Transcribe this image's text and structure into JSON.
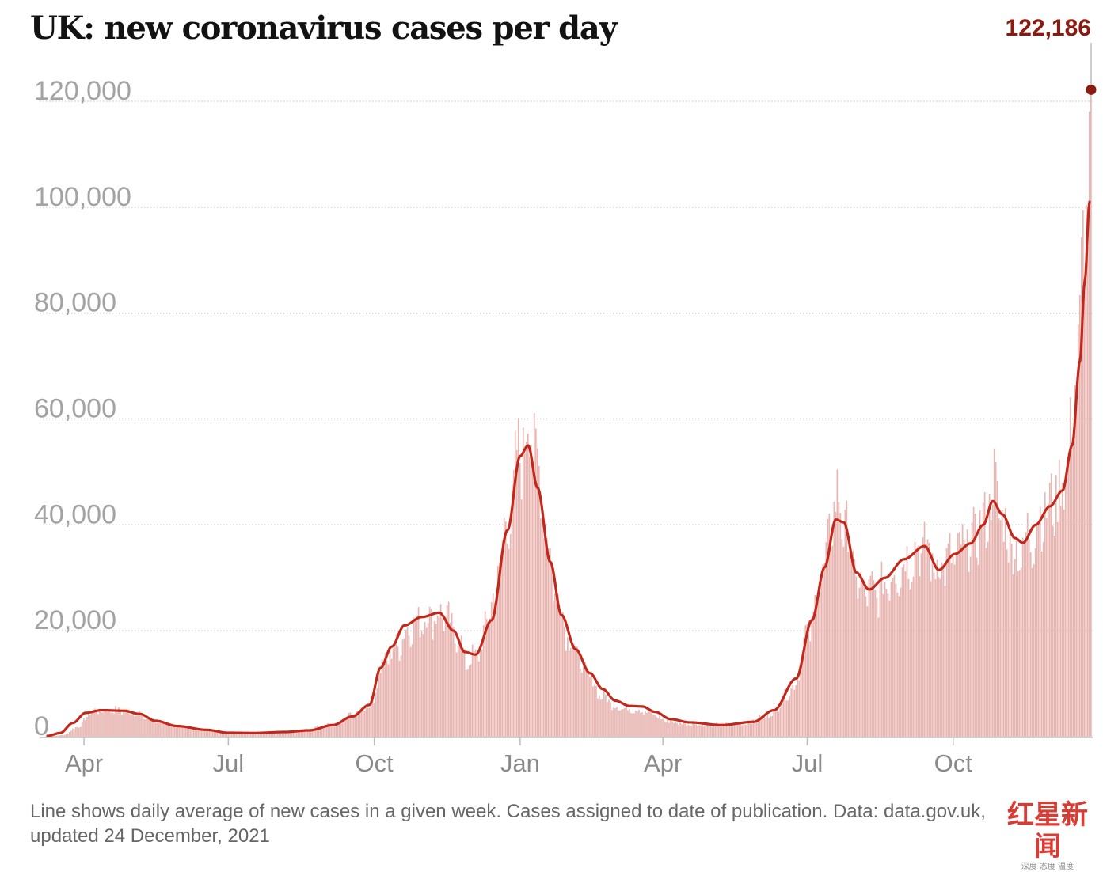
{
  "chart_data": {
    "type": "bar",
    "title": "UK: new coronavirus cases per day",
    "xlabel": "",
    "ylabel": "",
    "ylim": [
      0,
      120000
    ],
    "yticks": [
      {
        "value": 0,
        "label": "0"
      },
      {
        "value": 20000,
        "label": "20,000"
      },
      {
        "value": 40000,
        "label": "40,000"
      },
      {
        "value": 60000,
        "label": "60,000"
      },
      {
        "value": 80000,
        "label": "80,000"
      },
      {
        "value": 100000,
        "label": "100,000"
      },
      {
        "value": 120000,
        "label": "120,000"
      }
    ],
    "xticks": [
      {
        "day": 23,
        "label": "Apr"
      },
      {
        "day": 114,
        "label": "Jul"
      },
      {
        "day": 206,
        "label": "Oct"
      },
      {
        "day": 298,
        "label": "Jan"
      },
      {
        "day": 388,
        "label": "Apr"
      },
      {
        "day": 479,
        "label": "Jul"
      },
      {
        "day": 571,
        "label": "Oct"
      }
    ],
    "x_range_days": [
      -5,
      659
    ],
    "x_day_zero": "2020-03-01",
    "series": [
      {
        "name": "Daily new cases",
        "kind": "bars",
        "keypoints": [
          [
            0,
            30
          ],
          [
            10,
            300
          ],
          [
            20,
            2000
          ],
          [
            28,
            4800
          ],
          [
            40,
            5000
          ],
          [
            55,
            4600
          ],
          [
            65,
            3200
          ],
          [
            80,
            2000
          ],
          [
            100,
            1200
          ],
          [
            115,
            700
          ],
          [
            140,
            800
          ],
          [
            160,
            1200
          ],
          [
            180,
            2200
          ],
          [
            195,
            4500
          ],
          [
            205,
            6500
          ],
          [
            210,
            13000
          ],
          [
            220,
            17000
          ],
          [
            230,
            21000
          ],
          [
            240,
            22500
          ],
          [
            250,
            23000
          ],
          [
            258,
            19000
          ],
          [
            265,
            14000
          ],
          [
            272,
            16000
          ],
          [
            280,
            25000
          ],
          [
            290,
            40000
          ],
          [
            298,
            54000
          ],
          [
            305,
            59000
          ],
          [
            312,
            45000
          ],
          [
            320,
            28000
          ],
          [
            330,
            18000
          ],
          [
            340,
            12000
          ],
          [
            350,
            7500
          ],
          [
            360,
            5500
          ],
          [
            370,
            5200
          ],
          [
            380,
            4500
          ],
          [
            390,
            3000
          ],
          [
            400,
            2500
          ],
          [
            420,
            2200
          ],
          [
            440,
            2500
          ],
          [
            455,
            4000
          ],
          [
            470,
            9000
          ],
          [
            480,
            20000
          ],
          [
            490,
            32000
          ],
          [
            497,
            45000
          ],
          [
            503,
            40000
          ],
          [
            512,
            28000
          ],
          [
            522,
            27000
          ],
          [
            535,
            31000
          ],
          [
            545,
            34000
          ],
          [
            553,
            36000
          ],
          [
            560,
            32000
          ],
          [
            568,
            33000
          ],
          [
            580,
            36000
          ],
          [
            590,
            40000
          ],
          [
            597,
            47000
          ],
          [
            605,
            38000
          ],
          [
            612,
            34000
          ],
          [
            620,
            38000
          ],
          [
            630,
            43000
          ],
          [
            638,
            46000
          ],
          [
            645,
            55000
          ],
          [
            650,
            75000
          ],
          [
            654,
            92000
          ],
          [
            657,
            110000
          ],
          [
            658,
            122186
          ]
        ],
        "noise": 0.14
      },
      {
        "name": "7-day average",
        "kind": "line",
        "color": "#c1281c",
        "keypoints": [
          [
            0,
            150
          ],
          [
            8,
            700
          ],
          [
            16,
            2600
          ],
          [
            24,
            4500
          ],
          [
            34,
            5000
          ],
          [
            48,
            4900
          ],
          [
            58,
            4300
          ],
          [
            68,
            3000
          ],
          [
            82,
            2000
          ],
          [
            100,
            1300
          ],
          [
            114,
            750
          ],
          [
            130,
            700
          ],
          [
            150,
            900
          ],
          [
            165,
            1200
          ],
          [
            180,
            2200
          ],
          [
            192,
            3800
          ],
          [
            203,
            6000
          ],
          [
            210,
            13000
          ],
          [
            217,
            17000
          ],
          [
            225,
            21000
          ],
          [
            236,
            22600
          ],
          [
            247,
            23400
          ],
          [
            256,
            20000
          ],
          [
            263,
            16000
          ],
          [
            270,
            15500
          ],
          [
            280,
            22000
          ],
          [
            290,
            39000
          ],
          [
            298,
            53000
          ],
          [
            303,
            55000
          ],
          [
            309,
            47000
          ],
          [
            317,
            33000
          ],
          [
            324,
            23000
          ],
          [
            333,
            16500
          ],
          [
            342,
            12000
          ],
          [
            350,
            9000
          ],
          [
            358,
            6800
          ],
          [
            367,
            5800
          ],
          [
            375,
            5700
          ],
          [
            383,
            4700
          ],
          [
            393,
            3300
          ],
          [
            405,
            2700
          ],
          [
            425,
            2200
          ],
          [
            445,
            2800
          ],
          [
            458,
            5000
          ],
          [
            472,
            11000
          ],
          [
            482,
            22000
          ],
          [
            490,
            32000
          ],
          [
            497,
            41000
          ],
          [
            502,
            40500
          ],
          [
            510,
            31000
          ],
          [
            518,
            27800
          ],
          [
            528,
            30000
          ],
          [
            540,
            33500
          ],
          [
            553,
            36000
          ],
          [
            562,
            31500
          ],
          [
            572,
            34500
          ],
          [
            582,
            36500
          ],
          [
            590,
            40000
          ],
          [
            596,
            44500
          ],
          [
            602,
            42000
          ],
          [
            610,
            37500
          ],
          [
            615,
            36600
          ],
          [
            623,
            40000
          ],
          [
            632,
            43500
          ],
          [
            640,
            46500
          ],
          [
            646,
            55000
          ],
          [
            651,
            71000
          ],
          [
            654,
            86000
          ],
          [
            657,
            101000
          ]
        ]
      }
    ],
    "annotations": [
      {
        "label": "122,186",
        "day": 658,
        "value": 122186,
        "color": "#8b1a10"
      }
    ],
    "colors": {
      "bars": "#e8b7b3",
      "line": "#c1281c",
      "peak": "#8b1a10",
      "grid": "#c8c8c8",
      "axis": "#bdbdbd"
    }
  },
  "footnote": {
    "line1": "Line shows daily average of new cases in a given week. Cases assigned to date of publication. Data: data.gov.uk,",
    "line2": "updated 24 December, 2021"
  },
  "watermark": {
    "main": "红星新闻",
    "sub": "深度 态度 温度"
  }
}
